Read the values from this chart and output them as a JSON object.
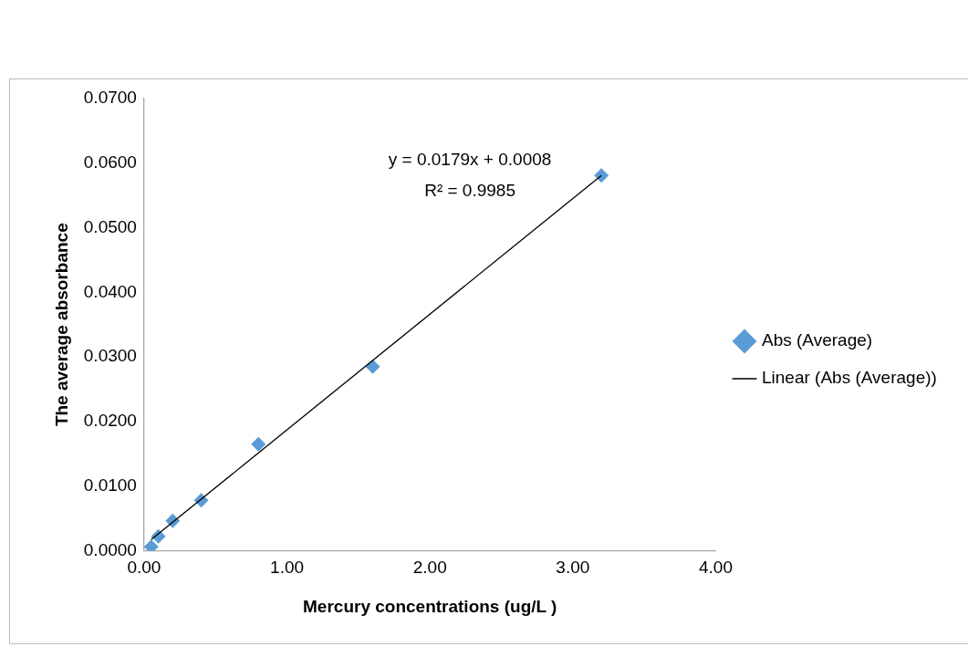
{
  "chart_data": {
    "type": "scatter",
    "xlabel": "Mercury concentrations (ug/L )",
    "ylabel": "The average absorbance",
    "xlim": [
      0,
      4
    ],
    "xticks": [
      {
        "value": 0,
        "label": "0.00"
      },
      {
        "value": 1,
        "label": "1.00"
      },
      {
        "value": 2,
        "label": "2.00"
      },
      {
        "value": 3,
        "label": "3.00"
      },
      {
        "value": 4,
        "label": "4.00"
      }
    ],
    "ylim": [
      0,
      0.07
    ],
    "yticks": [
      {
        "value": 0,
        "label": "0.0000"
      },
      {
        "value": 0.01,
        "label": "0.0100"
      },
      {
        "value": 0.02,
        "label": "0.0200"
      },
      {
        "value": 0.03,
        "label": "0.0300"
      },
      {
        "value": 0.04,
        "label": "0.0400"
      },
      {
        "value": 0.05,
        "label": "0.0500"
      },
      {
        "value": 0.06,
        "label": "0.0600"
      },
      {
        "value": 0.07,
        "label": "0.0700"
      }
    ],
    "series": [
      {
        "name": "Abs (Average)",
        "type": "scatter",
        "color": "#5b9bd5",
        "marker": "diamond",
        "x": [
          0.05,
          0.1,
          0.2,
          0.4,
          0.8,
          1.6,
          3.2
        ],
        "values": [
          0.0006,
          0.0022,
          0.0046,
          0.0078,
          0.0165,
          0.0285,
          0.0581
        ]
      },
      {
        "name": "Linear (Abs (Average))",
        "type": "line",
        "color": "#000000",
        "marker": "none",
        "line_style": "solid",
        "x": [
          0.05,
          3.2
        ],
        "values": [
          0.0017,
          0.0581
        ]
      }
    ],
    "annotations": [
      "y = 0.0179x + 0.0008",
      "R² = 0.9985"
    ],
    "grid": false,
    "legend": "right"
  }
}
